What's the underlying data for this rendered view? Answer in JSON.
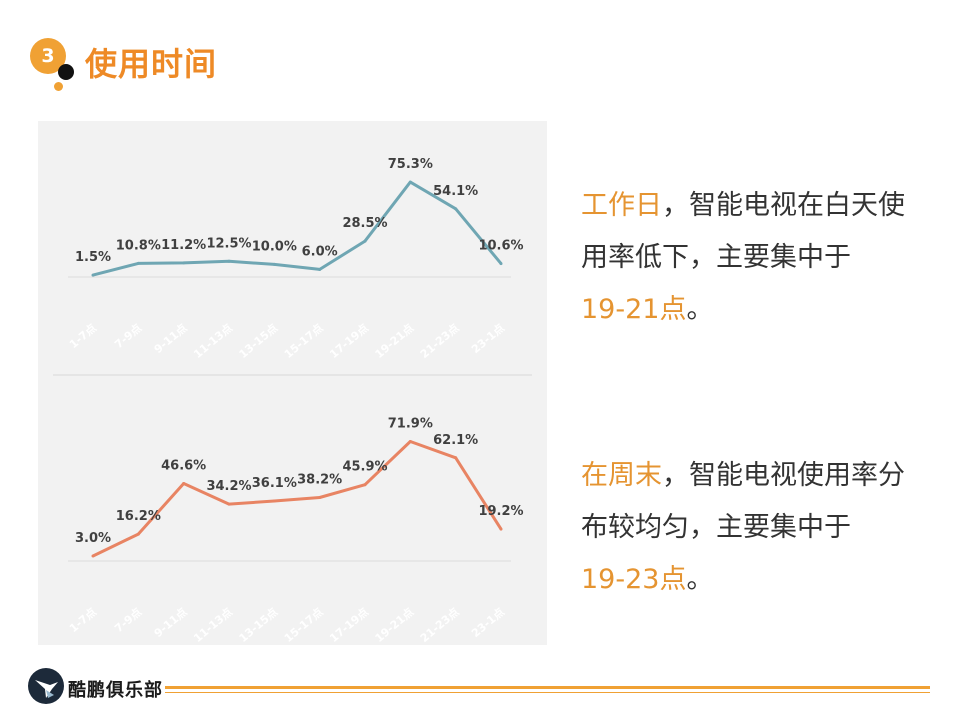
{
  "section": {
    "number": "3",
    "title": "使用时间"
  },
  "descriptions": {
    "weekday": {
      "highlight": "工作日",
      "text": "，智能电视在白天使用率低下，主要集中于",
      "time": "19-21点",
      "end": "。"
    },
    "weekend": {
      "highlight": "在周末",
      "text": "，智能电视使用率分布较均匀，主要集中于",
      "time": "19-23点",
      "end": "。"
    }
  },
  "footer": {
    "brand": "酷鹏俱乐部"
  },
  "colors": {
    "accent": "#f0a134",
    "weekday_line": "#6fa6b3",
    "weekend_line": "#e88463"
  },
  "chart_data": [
    {
      "type": "line",
      "categories": [
        "1-7点",
        "7-9点",
        "9-11点",
        "11-13点",
        "13-15点",
        "15-17点",
        "17-19点",
        "19-21点",
        "21-23点",
        "23-1点"
      ],
      "series": [
        {
          "values": [
            1.5,
            10.8,
            11.2,
            12.5,
            10.0,
            6.0,
            28.5,
            75.3,
            54.1,
            10.6
          ]
        }
      ],
      "data_labels": [
        "1.5%",
        "10.8%",
        "11.2%",
        "12.5%",
        "10.0%",
        "6.0%",
        "28.5%",
        "75.3%",
        "54.1%",
        "10.6%"
      ],
      "ylim": [
        0,
        100
      ],
      "grid": false,
      "line_color": "#6fa6b3"
    },
    {
      "type": "line",
      "categories": [
        "1-7点",
        "7-9点",
        "9-11点",
        "11-13点",
        "13-15点",
        "15-17点",
        "17-19点",
        "19-21点",
        "21-23点",
        "23-1点"
      ],
      "series": [
        {
          "values": [
            3.0,
            16.2,
            46.6,
            34.2,
            36.1,
            38.2,
            45.9,
            71.9,
            62.1,
            19.2
          ]
        }
      ],
      "data_labels": [
        "3.0%",
        "16.2%",
        "46.6%",
        "34.2%",
        "36.1%",
        "38.2%",
        "45.9%",
        "71.9%",
        "62.1%",
        "19.2%"
      ],
      "ylim": [
        0,
        80
      ],
      "grid": false,
      "line_color": "#e88463"
    }
  ]
}
